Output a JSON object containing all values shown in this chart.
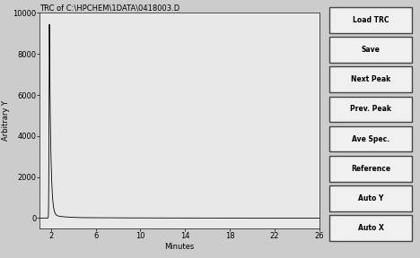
{
  "title": "TRC of C:\\HPCHEM\\1DATA\\0418003.D",
  "xlabel": "Minutes",
  "ylabel": "Arbitrary Y",
  "xlim": [
    1,
    26
  ],
  "ylim": [
    -500,
    10000
  ],
  "yticks": [
    0,
    2000,
    4000,
    6000,
    8000,
    10000
  ],
  "xticks": [
    2,
    6,
    10,
    14,
    18,
    22,
    26
  ],
  "peak_x": 1.85,
  "peak_y": 9300,
  "bg_color": "#cccccc",
  "plot_bg_color": "#e8e8e8",
  "line_color": "#000000",
  "button_labels": [
    "Load TRC",
    "Save",
    "Next Peak",
    "Prev. Peak",
    "Ave Spec.",
    "Reference",
    "Auto Y",
    "Auto X"
  ],
  "title_fontsize": 6,
  "axis_fontsize": 6,
  "tick_fontsize": 6
}
